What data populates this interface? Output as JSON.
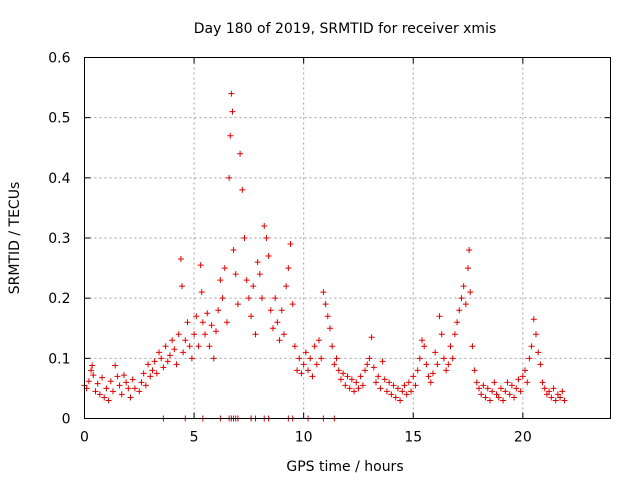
{
  "chart_data": {
    "type": "scatter",
    "title": "Day 180 of 2019, SRMTID for receiver xmis",
    "xlabel": "GPS time / hours",
    "ylabel": "SRMTID / TECUs",
    "xlim": [
      0,
      24
    ],
    "ylim": [
      0,
      0.6
    ],
    "xticks": [
      0,
      5,
      10,
      15,
      20
    ],
    "yticks": [
      0,
      0.1,
      0.2,
      0.3,
      0.4,
      0.5,
      0.6
    ],
    "xtick_labels": [
      "0",
      "5",
      "10",
      "15",
      "20"
    ],
    "ytick_labels": [
      "0",
      "0.1",
      "0.2",
      "0.3",
      "0.4",
      "0.5",
      "0.6"
    ],
    "grid": true,
    "marker": "+",
    "color": "#e00000",
    "series": [
      {
        "name": "SRMTID",
        "points": [
          [
            0.0,
            0.055
          ],
          [
            0.1,
            0.05
          ],
          [
            0.2,
            0.062
          ],
          [
            0.3,
            0.08
          ],
          [
            0.35,
            0.088
          ],
          [
            0.4,
            0.072
          ],
          [
            0.5,
            0.045
          ],
          [
            0.6,
            0.058
          ],
          [
            0.7,
            0.04
          ],
          [
            0.8,
            0.068
          ],
          [
            0.9,
            0.035
          ],
          [
            1.0,
            0.05
          ],
          [
            1.1,
            0.03
          ],
          [
            1.2,
            0.062
          ],
          [
            1.3,
            0.045
          ],
          [
            1.4,
            0.088
          ],
          [
            1.5,
            0.07
          ],
          [
            1.6,
            0.055
          ],
          [
            1.7,
            0.04
          ],
          [
            1.8,
            0.072
          ],
          [
            1.9,
            0.06
          ],
          [
            2.0,
            0.05
          ],
          [
            2.1,
            0.035
          ],
          [
            2.2,
            0.065
          ],
          [
            2.3,
            0.05
          ],
          [
            2.5,
            0.045
          ],
          [
            2.6,
            0.06
          ],
          [
            2.7,
            0.075
          ],
          [
            2.8,
            0.055
          ],
          [
            2.9,
            0.09
          ],
          [
            3.0,
            0.07
          ],
          [
            3.1,
            0.08
          ],
          [
            3.2,
            0.095
          ],
          [
            3.3,
            0.075
          ],
          [
            3.4,
            0.11
          ],
          [
            3.5,
            0.1
          ],
          [
            3.6,
            0.085
          ],
          [
            3.7,
            0.12
          ],
          [
            3.8,
            0.095
          ],
          [
            3.9,
            0.105
          ],
          [
            4.0,
            0.13
          ],
          [
            4.1,
            0.115
          ],
          [
            4.2,
            0.09
          ],
          [
            4.3,
            0.14
          ],
          [
            4.4,
            0.265
          ],
          [
            4.45,
            0.22
          ],
          [
            4.5,
            0.11
          ],
          [
            4.6,
            0.13
          ],
          [
            4.7,
            0.16
          ],
          [
            4.8,
            0.12
          ],
          [
            4.9,
            0.1
          ],
          [
            5.0,
            0.14
          ],
          [
            5.1,
            0.17
          ],
          [
            5.2,
            0.12
          ],
          [
            5.3,
            0.255
          ],
          [
            5.35,
            0.21
          ],
          [
            5.4,
            0.16
          ],
          [
            5.5,
            0.14
          ],
          [
            5.6,
            0.175
          ],
          [
            5.7,
            0.12
          ],
          [
            5.8,
            0.155
          ],
          [
            5.9,
            0.1
          ],
          [
            6.0,
            0.145
          ],
          [
            6.1,
            0.18
          ],
          [
            6.2,
            0.23
          ],
          [
            6.3,
            0.2
          ],
          [
            6.4,
            0.25
          ],
          [
            6.5,
            0.16
          ],
          [
            6.6,
            0.4
          ],
          [
            6.65,
            0.47
          ],
          [
            6.7,
            0.54
          ],
          [
            6.75,
            0.51
          ],
          [
            6.8,
            0.28
          ],
          [
            6.9,
            0.24
          ],
          [
            7.0,
            0.19
          ],
          [
            7.1,
            0.44
          ],
          [
            7.2,
            0.38
          ],
          [
            7.3,
            0.3
          ],
          [
            7.4,
            0.23
          ],
          [
            7.5,
            0.2
          ],
          [
            7.6,
            0.17
          ],
          [
            7.7,
            0.22
          ],
          [
            7.8,
            0.14
          ],
          [
            7.9,
            0.26
          ],
          [
            8.0,
            0.24
          ],
          [
            8.1,
            0.2
          ],
          [
            8.2,
            0.32
          ],
          [
            8.3,
            0.3
          ],
          [
            8.4,
            0.27
          ],
          [
            8.5,
            0.18
          ],
          [
            8.6,
            0.15
          ],
          [
            8.7,
            0.2
          ],
          [
            8.8,
            0.16
          ],
          [
            8.9,
            0.13
          ],
          [
            9.0,
            0.18
          ],
          [
            9.1,
            0.14
          ],
          [
            9.2,
            0.22
          ],
          [
            9.3,
            0.25
          ],
          [
            9.4,
            0.29
          ],
          [
            9.5,
            0.19
          ],
          [
            9.6,
            0.12
          ],
          [
            9.7,
            0.08
          ],
          [
            9.8,
            0.1
          ],
          [
            9.9,
            0.075
          ],
          [
            10.0,
            0.09
          ],
          [
            10.1,
            0.11
          ],
          [
            10.2,
            0.08
          ],
          [
            10.3,
            0.1
          ],
          [
            10.4,
            0.07
          ],
          [
            10.5,
            0.12
          ],
          [
            10.6,
            0.09
          ],
          [
            10.7,
            0.13
          ],
          [
            10.8,
            0.1
          ],
          [
            10.9,
            0.21
          ],
          [
            11.0,
            0.19
          ],
          [
            11.1,
            0.17
          ],
          [
            11.2,
            0.15
          ],
          [
            11.3,
            0.12
          ],
          [
            11.4,
            0.09
          ],
          [
            11.5,
            0.1
          ],
          [
            11.6,
            0.08
          ],
          [
            11.7,
            0.065
          ],
          [
            11.8,
            0.075
          ],
          [
            11.9,
            0.055
          ],
          [
            12.0,
            0.07
          ],
          [
            12.1,
            0.05
          ],
          [
            12.2,
            0.065
          ],
          [
            12.3,
            0.045
          ],
          [
            12.4,
            0.06
          ],
          [
            12.5,
            0.05
          ],
          [
            12.6,
            0.07
          ],
          [
            12.7,
            0.055
          ],
          [
            12.8,
            0.08
          ],
          [
            12.9,
            0.09
          ],
          [
            13.0,
            0.1
          ],
          [
            13.1,
            0.135
          ],
          [
            13.2,
            0.085
          ],
          [
            13.3,
            0.06
          ],
          [
            13.4,
            0.07
          ],
          [
            13.5,
            0.05
          ],
          [
            13.6,
            0.095
          ],
          [
            13.7,
            0.065
          ],
          [
            13.8,
            0.045
          ],
          [
            13.9,
            0.06
          ],
          [
            14.0,
            0.04
          ],
          [
            14.1,
            0.055
          ],
          [
            14.2,
            0.035
          ],
          [
            14.3,
            0.05
          ],
          [
            14.4,
            0.03
          ],
          [
            14.5,
            0.045
          ],
          [
            14.6,
            0.055
          ],
          [
            14.7,
            0.04
          ],
          [
            14.8,
            0.06
          ],
          [
            14.9,
            0.045
          ],
          [
            15.0,
            0.07
          ],
          [
            15.1,
            0.055
          ],
          [
            15.2,
            0.08
          ],
          [
            15.3,
            0.1
          ],
          [
            15.4,
            0.13
          ],
          [
            15.5,
            0.12
          ],
          [
            15.6,
            0.09
          ],
          [
            15.7,
            0.07
          ],
          [
            15.8,
            0.06
          ],
          [
            15.9,
            0.075
          ],
          [
            16.0,
            0.11
          ],
          [
            16.1,
            0.09
          ],
          [
            16.2,
            0.17
          ],
          [
            16.3,
            0.14
          ],
          [
            16.4,
            0.1
          ],
          [
            16.5,
            0.08
          ],
          [
            16.6,
            0.09
          ],
          [
            16.7,
            0.12
          ],
          [
            16.8,
            0.1
          ],
          [
            16.9,
            0.14
          ],
          [
            17.0,
            0.16
          ],
          [
            17.1,
            0.18
          ],
          [
            17.2,
            0.2
          ],
          [
            17.3,
            0.22
          ],
          [
            17.4,
            0.19
          ],
          [
            17.5,
            0.25
          ],
          [
            17.55,
            0.28
          ],
          [
            17.6,
            0.21
          ],
          [
            17.7,
            0.12
          ],
          [
            17.8,
            0.08
          ],
          [
            17.9,
            0.06
          ],
          [
            18.0,
            0.05
          ],
          [
            18.1,
            0.04
          ],
          [
            18.2,
            0.055
          ],
          [
            18.3,
            0.035
          ],
          [
            18.4,
            0.05
          ],
          [
            18.5,
            0.03
          ],
          [
            18.6,
            0.045
          ],
          [
            18.7,
            0.06
          ],
          [
            18.8,
            0.04
          ],
          [
            18.9,
            0.035
          ],
          [
            19.0,
            0.05
          ],
          [
            19.1,
            0.03
          ],
          [
            19.2,
            0.045
          ],
          [
            19.3,
            0.06
          ],
          [
            19.4,
            0.04
          ],
          [
            19.5,
            0.055
          ],
          [
            19.6,
            0.035
          ],
          [
            19.7,
            0.05
          ],
          [
            19.8,
            0.065
          ],
          [
            19.9,
            0.045
          ],
          [
            20.0,
            0.07
          ],
          [
            20.1,
            0.08
          ],
          [
            20.2,
            0.06
          ],
          [
            20.3,
            0.1
          ],
          [
            20.4,
            0.12
          ],
          [
            20.5,
            0.165
          ],
          [
            20.6,
            0.14
          ],
          [
            20.7,
            0.11
          ],
          [
            20.8,
            0.09
          ],
          [
            20.9,
            0.06
          ],
          [
            21.0,
            0.05
          ],
          [
            21.1,
            0.04
          ],
          [
            21.2,
            0.045
          ],
          [
            21.3,
            0.035
          ],
          [
            21.4,
            0.05
          ],
          [
            21.5,
            0.03
          ],
          [
            21.6,
            0.04
          ],
          [
            21.7,
            0.035
          ],
          [
            21.8,
            0.045
          ],
          [
            21.9,
            0.03
          ],
          [
            3.6,
            0.0
          ],
          [
            4.6,
            0.0
          ],
          [
            5.4,
            0.0
          ],
          [
            6.2,
            0.0
          ],
          [
            6.6,
            0.0
          ],
          [
            6.7,
            0.0
          ],
          [
            6.8,
            0.0
          ],
          [
            6.9,
            0.0
          ],
          [
            7.0,
            0.0
          ],
          [
            7.6,
            0.0
          ],
          [
            7.8,
            0.0
          ],
          [
            8.2,
            0.0
          ],
          [
            8.4,
            0.0
          ],
          [
            9.3,
            0.0
          ],
          [
            9.5,
            0.0
          ],
          [
            10.2,
            0.0
          ],
          [
            10.9,
            0.0
          ],
          [
            11.4,
            0.0
          ]
        ]
      }
    ]
  }
}
